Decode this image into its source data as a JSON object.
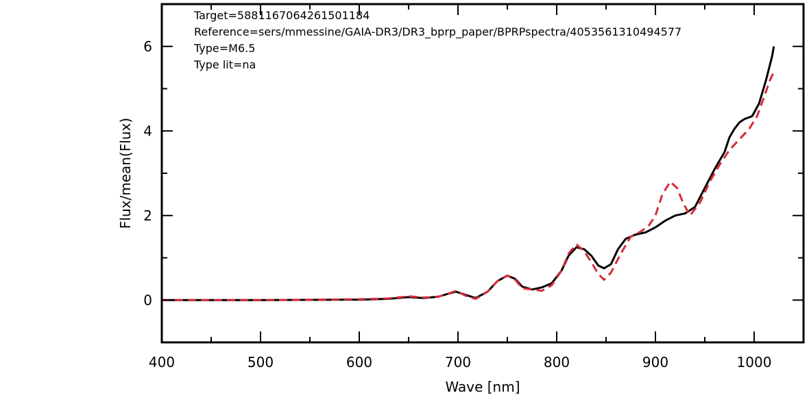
{
  "chart_data": {
    "type": "line",
    "title": "",
    "xlabel": "Wave [nm]",
    "ylabel": "Flux/mean(Flux)",
    "xlim": [
      400,
      1050
    ],
    "ylim": [
      -1,
      7
    ],
    "x_ticks": [
      400,
      500,
      600,
      700,
      800,
      900,
      1000
    ],
    "y_ticks": [
      0,
      2,
      4,
      6
    ],
    "grid": false,
    "legend": "none",
    "annotations": [
      "Target=5881167064261501184",
      "Reference=sers/mmessine/GAIA-DR3/DR3_bprp_paper/BPRPspectra/4053561310494577",
      "Type=M6.5",
      "Type lit=na"
    ],
    "series": [
      {
        "color": "#000000",
        "style": "solid",
        "points": [
          [
            400,
            0.0
          ],
          [
            500,
            0.0
          ],
          [
            600,
            0.01
          ],
          [
            630,
            0.03
          ],
          [
            650,
            0.07
          ],
          [
            665,
            0.05
          ],
          [
            680,
            0.08
          ],
          [
            690,
            0.15
          ],
          [
            698,
            0.2
          ],
          [
            708,
            0.12
          ],
          [
            718,
            0.05
          ],
          [
            730,
            0.2
          ],
          [
            740,
            0.45
          ],
          [
            750,
            0.58
          ],
          [
            758,
            0.5
          ],
          [
            765,
            0.32
          ],
          [
            775,
            0.25
          ],
          [
            785,
            0.3
          ],
          [
            795,
            0.4
          ],
          [
            805,
            0.7
          ],
          [
            812,
            1.05
          ],
          [
            820,
            1.25
          ],
          [
            828,
            1.2
          ],
          [
            835,
            1.05
          ],
          [
            842,
            0.82
          ],
          [
            848,
            0.75
          ],
          [
            855,
            0.85
          ],
          [
            862,
            1.2
          ],
          [
            870,
            1.45
          ],
          [
            880,
            1.55
          ],
          [
            890,
            1.6
          ],
          [
            900,
            1.72
          ],
          [
            910,
            1.88
          ],
          [
            920,
            2.0
          ],
          [
            930,
            2.05
          ],
          [
            940,
            2.2
          ],
          [
            950,
            2.65
          ],
          [
            960,
            3.1
          ],
          [
            970,
            3.5
          ],
          [
            975,
            3.85
          ],
          [
            980,
            4.05
          ],
          [
            985,
            4.2
          ],
          [
            990,
            4.28
          ],
          [
            998,
            4.35
          ],
          [
            1005,
            4.65
          ],
          [
            1012,
            5.2
          ],
          [
            1018,
            5.75
          ],
          [
            1020,
            6.0
          ]
        ]
      },
      {
        "color": "#d62b3a",
        "style": "dashed",
        "points": [
          [
            400,
            0.0
          ],
          [
            500,
            0.0
          ],
          [
            600,
            0.02
          ],
          [
            630,
            0.04
          ],
          [
            650,
            0.09
          ],
          [
            665,
            0.06
          ],
          [
            680,
            0.08
          ],
          [
            690,
            0.15
          ],
          [
            698,
            0.22
          ],
          [
            708,
            0.1
          ],
          [
            718,
            0.03
          ],
          [
            730,
            0.2
          ],
          [
            740,
            0.45
          ],
          [
            750,
            0.58
          ],
          [
            758,
            0.48
          ],
          [
            765,
            0.28
          ],
          [
            775,
            0.25
          ],
          [
            785,
            0.22
          ],
          [
            795,
            0.35
          ],
          [
            805,
            0.7
          ],
          [
            812,
            1.1
          ],
          [
            820,
            1.32
          ],
          [
            828,
            1.15
          ],
          [
            835,
            0.9
          ],
          [
            842,
            0.62
          ],
          [
            848,
            0.48
          ],
          [
            855,
            0.65
          ],
          [
            865,
            1.1
          ],
          [
            875,
            1.5
          ],
          [
            885,
            1.62
          ],
          [
            893,
            1.75
          ],
          [
            900,
            2.0
          ],
          [
            907,
            2.5
          ],
          [
            915,
            2.8
          ],
          [
            922,
            2.65
          ],
          [
            928,
            2.3
          ],
          [
            935,
            2.0
          ],
          [
            945,
            2.3
          ],
          [
            955,
            2.8
          ],
          [
            965,
            3.2
          ],
          [
            975,
            3.55
          ],
          [
            985,
            3.8
          ],
          [
            995,
            4.05
          ],
          [
            1003,
            4.35
          ],
          [
            1010,
            4.8
          ],
          [
            1016,
            5.2
          ],
          [
            1020,
            5.4
          ]
        ]
      }
    ]
  }
}
